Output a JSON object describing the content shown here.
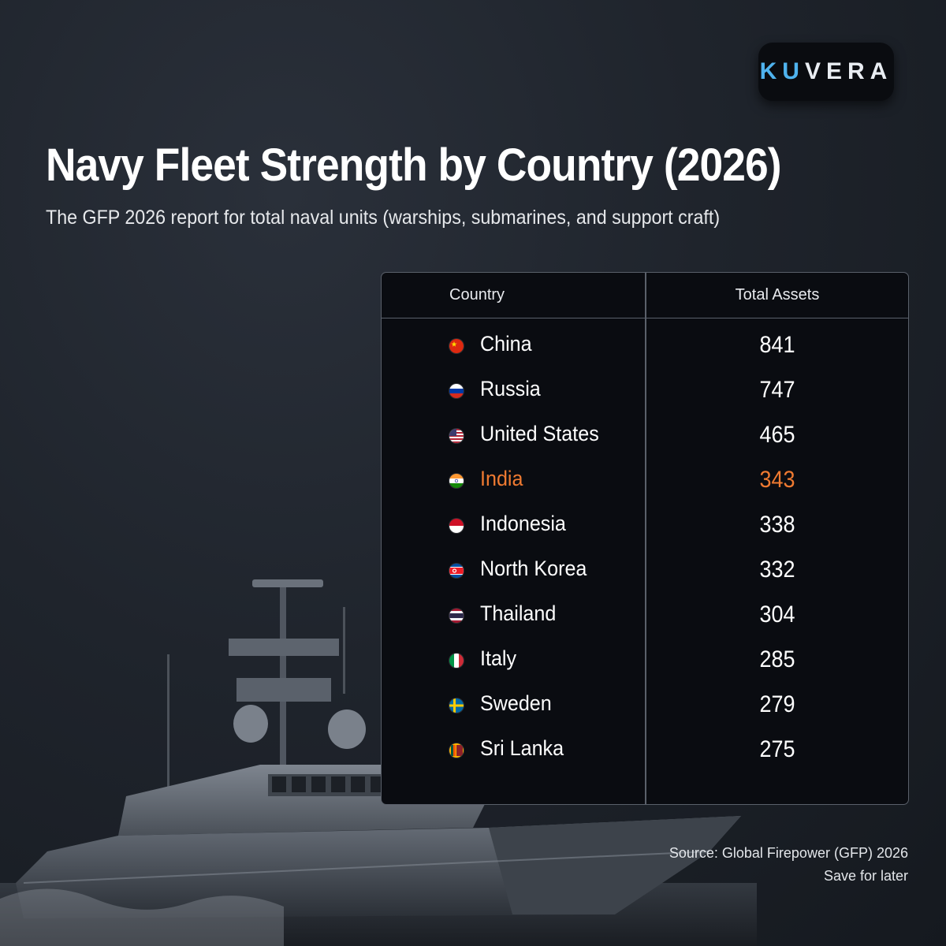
{
  "brand": {
    "logo_prefix": "KU",
    "logo_rest": "VERA"
  },
  "header": {
    "title": "Navy Fleet Strength by Country (2026)",
    "subtitle": "The GFP 2026 report for total naval units (warships, submarines, and support craft)"
  },
  "chart_data": {
    "type": "table",
    "title": "Navy Fleet Strength by Country (2026)",
    "columns": [
      "Country",
      "Total Assets"
    ],
    "highlight": "India",
    "rows": [
      {
        "country": "China",
        "value": 841,
        "flag": "china-flag-icon"
      },
      {
        "country": "Russia",
        "value": 747,
        "flag": "russia-flag-icon"
      },
      {
        "country": "United States",
        "value": 465,
        "flag": "usa-flag-icon"
      },
      {
        "country": "India",
        "value": 343,
        "flag": "india-flag-icon"
      },
      {
        "country": "Indonesia",
        "value": 338,
        "flag": "indonesia-flag-icon"
      },
      {
        "country": "North Korea",
        "value": 332,
        "flag": "north-korea-flag-icon"
      },
      {
        "country": "Thailand",
        "value": 304,
        "flag": "thailand-flag-icon"
      },
      {
        "country": "Italy",
        "value": 285,
        "flag": "italy-flag-icon"
      },
      {
        "country": "Sweden",
        "value": 279,
        "flag": "sweden-flag-icon"
      },
      {
        "country": "Sri Lanka",
        "value": 275,
        "flag": "sri-lanka-flag-icon"
      }
    ]
  },
  "footer": {
    "source": "Source: Global Firepower (GFP) 2026",
    "cta": "Save for later"
  },
  "colors": {
    "accent": "#ef7a31",
    "logo_blue": "#4fb3ee",
    "background": "#1f242c"
  }
}
